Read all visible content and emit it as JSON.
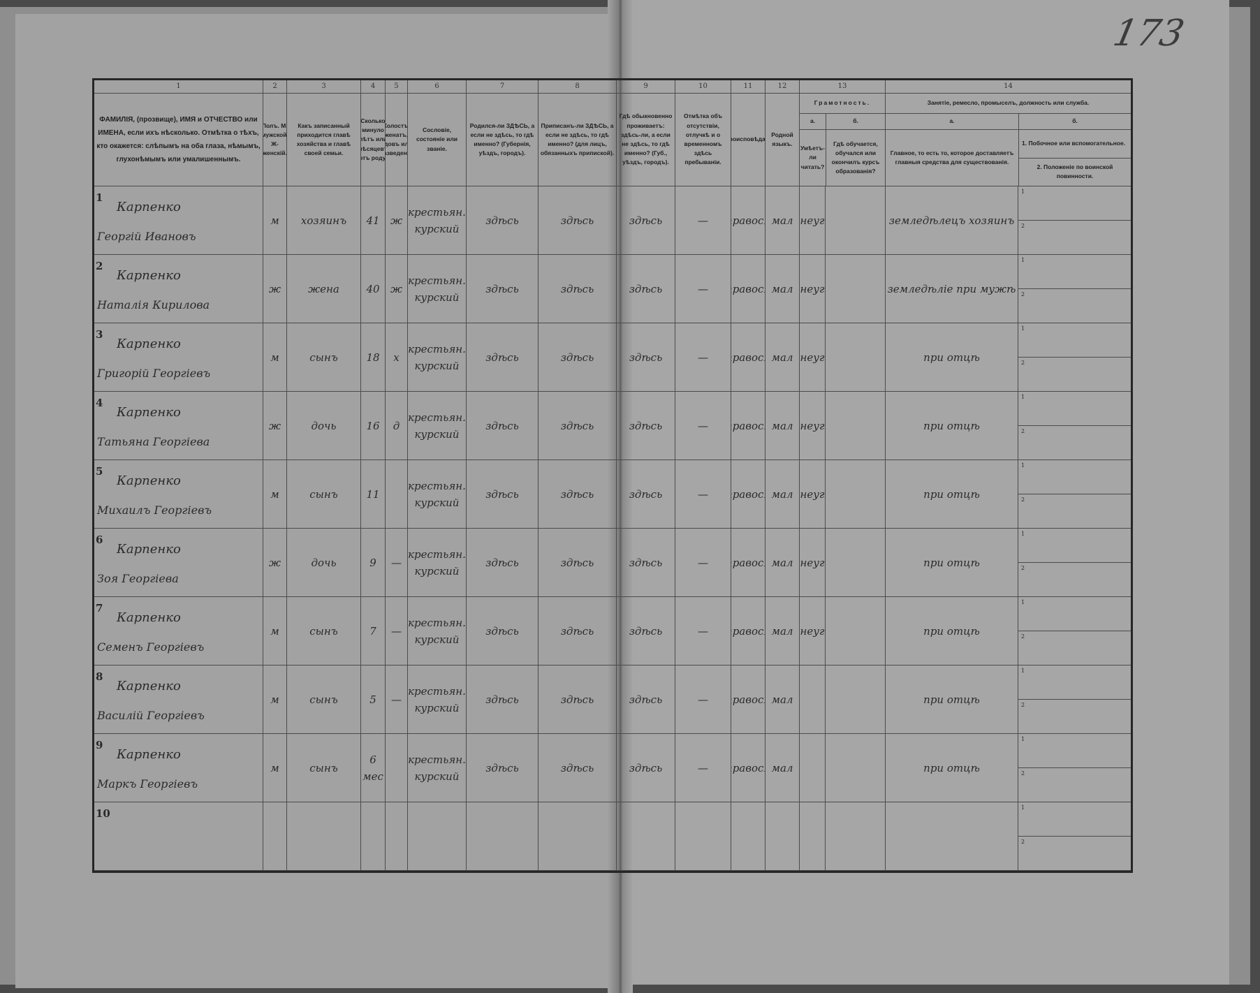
{
  "page_number": "173",
  "column_numbers": [
    "1",
    "2",
    "3",
    "4",
    "5",
    "6",
    "7",
    "8",
    "9",
    "10",
    "11",
    "12",
    "13",
    "14"
  ],
  "headers": {
    "c1": "ФАМИЛІЯ, (прозвище), ИМЯ и ОТЧЕСТВО или ИМЕНА, если ихъ нѣсколько. Отмѣтка о тѣхъ, кто окажется: слѣпымъ на оба глаза, нѣмымъ, глухонѣмымъ или умалишеннымъ.",
    "c2": "Полъ. М-мужской. Ж-женскій.",
    "c3": "Какъ записанный приходится главѣ хозяйства и главѣ своей семьи.",
    "c4": "Сколько минуло лѣтъ или мѣсяцевъ отъ роду.",
    "c5": "Холостъ, женатъ, вдовъ или разведенъ.",
    "c6": "Сословіе, состояніе или званіе.",
    "c7": "Родился-ли ЗДѢСЬ, а если не здѣсь, то гдѣ именно? (Губернія, уѣздъ, городъ).",
    "c8": "Приписанъ-ли ЗДѢСЬ, а если не здѣсь, то гдѣ именно? (для лицъ, обязанныхъ припиской).",
    "c9": "Гдѣ обыкновенно проживаетъ: здѣсь-ли, а если не здѣсь, то гдѣ именно? (Губ., уѣздъ, городъ).",
    "c10": "Отмѣтка объ отсутствіи, отлучкѣ и о временномъ здѣсь пребываніи.",
    "c11": "Вѣроисповѣданіе.",
    "c12": "Родной языкъ.",
    "c13": {
      "title": "Грамотность.",
      "a_label": "а.",
      "a": "Умѣетъ-ли читать?",
      "b_label": "б.",
      "b": "Гдѣ обучается, обучался или окончилъ курсъ образованія?"
    },
    "c14": {
      "title": "Занятіе, ремесло, промыселъ, должность или служба.",
      "a_label": "а.",
      "a": "Главное, то есть то, которое доставляетъ главныя средства для существованія.",
      "b_label": "б.",
      "b1": "1. Побочное или вспомогательное.",
      "b2": "2. Положеніе по воинской повинности."
    }
  },
  "sub_marks": {
    "one": "1",
    "two": "2"
  },
  "rows": [
    {
      "n": "1",
      "surname": "Карпенко",
      "given": "Георгій Ивановъ",
      "sex": "м",
      "relation": "хозяинъ",
      "age": "41",
      "marital": "ж",
      "estate": "крестьян. курский",
      "born": "здѣсь",
      "registered": "здѣсь",
      "resides": "здѣсь",
      "absence": "—",
      "religion": "правосл",
      "language": "мал",
      "literate": "неуг",
      "school": "",
      "occupation": "земледѣлецъ хозяинъ"
    },
    {
      "n": "2",
      "surname": "Карпенко",
      "given": "Наталія Кирилова",
      "sex": "ж",
      "relation": "жена",
      "age": "40",
      "marital": "ж",
      "estate": "крестьян. курский",
      "born": "здѣсь",
      "registered": "здѣсь",
      "resides": "здѣсь",
      "absence": "—",
      "religion": "правосл",
      "language": "мал",
      "literate": "неуг",
      "school": "",
      "occupation": "земледѣліе при мужѣ"
    },
    {
      "n": "3",
      "surname": "Карпенко",
      "given": "Григорій Георгіевъ",
      "sex": "м",
      "relation": "сынъ",
      "age": "18",
      "marital": "х",
      "estate": "крестьян. курский",
      "born": "здѣсь",
      "registered": "здѣсь",
      "resides": "здѣсь",
      "absence": "—",
      "religion": "правосл",
      "language": "мал",
      "literate": "неуг",
      "school": "",
      "occupation": "при отцѣ"
    },
    {
      "n": "4",
      "surname": "Карпенко",
      "given": "Татьяна Георгіева",
      "sex": "ж",
      "relation": "дочь",
      "age": "16",
      "marital": "д",
      "estate": "крестьян. курский",
      "born": "здѣсь",
      "registered": "здѣсь",
      "resides": "здѣсь",
      "absence": "—",
      "religion": "правосл",
      "language": "мал",
      "literate": "неуг",
      "school": "",
      "occupation": "при отцѣ"
    },
    {
      "n": "5",
      "surname": "Карпенко",
      "given": "Михаилъ Георгіевъ",
      "sex": "м",
      "relation": "сынъ",
      "age": "11",
      "marital": "",
      "estate": "крестьян. курский",
      "born": "здѣсь",
      "registered": "здѣсь",
      "resides": "здѣсь",
      "absence": "—",
      "religion": "правосл",
      "language": "мал",
      "literate": "неуг",
      "school": "",
      "occupation": "при отцѣ"
    },
    {
      "n": "6",
      "surname": "Карпенко",
      "given": "Зоя Георгіева",
      "sex": "ж",
      "relation": "дочь",
      "age": "9",
      "marital": "—",
      "estate": "крестьян. курский",
      "born": "здѣсь",
      "registered": "здѣсь",
      "resides": "здѣсь",
      "absence": "—",
      "religion": "правосл",
      "language": "мал",
      "literate": "неуг",
      "school": "",
      "occupation": "при отцѣ"
    },
    {
      "n": "7",
      "surname": "Карпенко",
      "given": "Семенъ Георгіевъ",
      "sex": "м",
      "relation": "сынъ",
      "age": "7",
      "marital": "—",
      "estate": "крестьян. курский",
      "born": "здѣсь",
      "registered": "здѣсь",
      "resides": "здѣсь",
      "absence": "—",
      "religion": "правосл",
      "language": "мал",
      "literate": "неуг",
      "school": "",
      "occupation": "при отцѣ"
    },
    {
      "n": "8",
      "surname": "Карпенко",
      "given": "Василій Георгіевъ",
      "sex": "м",
      "relation": "сынъ",
      "age": "5",
      "marital": "—",
      "estate": "крестьян. курский",
      "born": "здѣсь",
      "registered": "здѣсь",
      "resides": "здѣсь",
      "absence": "—",
      "religion": "правосл",
      "language": "мал",
      "literate": "",
      "school": "",
      "occupation": "при отцѣ"
    },
    {
      "n": "9",
      "surname": "Карпенко",
      "given": "Маркъ Георгіевъ",
      "sex": "м",
      "relation": "сынъ",
      "age": "6 мес",
      "marital": "",
      "estate": "крестьян. курский",
      "born": "здѣсь",
      "registered": "здѣсь",
      "resides": "здѣсь",
      "absence": "—",
      "religion": "правосл",
      "language": "мал",
      "literate": "",
      "school": "",
      "occupation": "при отцѣ"
    },
    {
      "n": "10",
      "surname": "",
      "given": "",
      "sex": "",
      "relation": "",
      "age": "",
      "marital": "",
      "estate": "",
      "born": "",
      "registered": "",
      "resides": "",
      "absence": "",
      "religion": "",
      "language": "",
      "literate": "",
      "school": "",
      "occupation": ""
    }
  ]
}
